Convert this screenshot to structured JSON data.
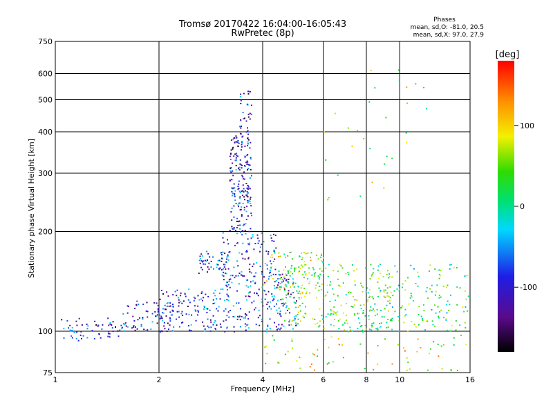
{
  "chart_data": {
    "type": "scatter",
    "title": "Tromsø 20170422 16:04:00-16:05:43",
    "subtitle": "RwPretec (8p)",
    "xlabel": "Frequency [MHz]",
    "ylabel": "Stationary phase Virtual Height [km]",
    "x_scale": "log",
    "y_scale": "log",
    "xlim": [
      1,
      16
    ],
    "ylim": [
      75,
      750
    ],
    "x_ticks": [
      1,
      2,
      4,
      6,
      8,
      10,
      16
    ],
    "y_ticks": [
      75,
      100,
      200,
      300,
      400,
      500,
      600,
      750
    ],
    "grid": true,
    "stats": {
      "title": "Phases",
      "line_o": "mean, sd,O: -81.0, 20.5",
      "line_x": "mean, sd,X:  97.0, 27.9"
    },
    "colorbar": {
      "label": "[deg]",
      "ticks": [
        "100",
        "0",
        "-100"
      ],
      "tick_values": [
        100,
        0,
        -100
      ],
      "range": [
        -180,
        180
      ],
      "colormap": "rainbow (black-purple-blue-cyan-green-yellow-orange-red)"
    },
    "clusters": [
      {
        "x": [
          1.0,
          1.55
        ],
        "y": [
          94,
          110
        ],
        "phase": -100,
        "n": 60
      },
      {
        "x": [
          1.55,
          2.2
        ],
        "y": [
          100,
          125
        ],
        "phase": -95,
        "n": 80
      },
      {
        "x": [
          2.0,
          3.0
        ],
        "y": [
          100,
          135
        ],
        "phase": -90,
        "n": 120
      },
      {
        "x": [
          2.6,
          3.2
        ],
        "y": [
          150,
          175
        ],
        "phase": -90,
        "n": 50
      },
      {
        "x": [
          3.2,
          3.7
        ],
        "y": [
          200,
          400
        ],
        "phase": -100,
        "n": 200
      },
      {
        "x": [
          3.4,
          3.7
        ],
        "y": [
          400,
          540
        ],
        "phase": -100,
        "n": 30
      },
      {
        "x": [
          3.0,
          4.4
        ],
        "y": [
          150,
          200
        ],
        "phase": -85,
        "n": 90
      },
      {
        "x": [
          3.0,
          5.0
        ],
        "y": [
          100,
          150
        ],
        "phase": -80,
        "n": 220
      },
      {
        "x": [
          4.0,
          6.0
        ],
        "y": [
          130,
          175
        ],
        "phase": 60,
        "n": 90
      },
      {
        "x": [
          4.5,
          9.5
        ],
        "y": [
          100,
          160
        ],
        "phase": 40,
        "n": 250
      },
      {
        "x": [
          8.0,
          16.0
        ],
        "y": [
          100,
          160
        ],
        "phase": 20,
        "n": 160
      },
      {
        "x": [
          4.0,
          16.0
        ],
        "y": [
          76,
          98
        ],
        "phase": 80,
        "n": 70
      },
      {
        "x": [
          6.0,
          13.0
        ],
        "y": [
          250,
          650
        ],
        "phase": 60,
        "n": 30
      }
    ]
  }
}
